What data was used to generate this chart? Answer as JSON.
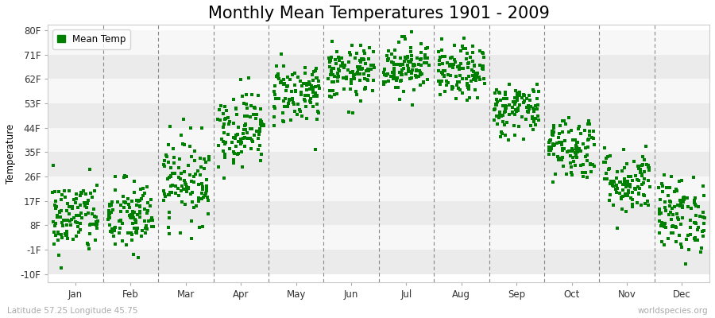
{
  "title": "Monthly Mean Temperatures 1901 - 2009",
  "ylabel": "Temperature",
  "xlabel_bottom_left": "Latitude 57.25 Longitude 45.75",
  "xlabel_bottom_right": "worldspecies.org",
  "ytick_labels": [
    "-10F",
    "-1F",
    "8F",
    "17F",
    "26F",
    "35F",
    "44F",
    "53F",
    "62F",
    "71F",
    "80F"
  ],
  "ytick_values": [
    -10,
    -1,
    8,
    17,
    26,
    35,
    44,
    53,
    62,
    71,
    80
  ],
  "months": [
    "Jan",
    "Feb",
    "Mar",
    "Apr",
    "May",
    "Jun",
    "Jul",
    "Aug",
    "Sep",
    "Oct",
    "Nov",
    "Dec"
  ],
  "month_centers": [
    1,
    2,
    3,
    4,
    5,
    6,
    7,
    8,
    9,
    10,
    11,
    12
  ],
  "dot_color": "#008000",
  "background_color": "#ffffff",
  "plot_bg_color": "#ffffff",
  "stripe_colors": [
    "#ebebeb",
    "#f7f7f7"
  ],
  "grid_color": "#999999",
  "legend_label": "Mean Temp",
  "n_years": 109,
  "seed": 42,
  "monthly_mean_F": [
    11,
    11,
    25,
    44,
    57,
    64,
    67,
    64,
    51,
    37,
    24,
    12
  ],
  "monthly_std_F": [
    7,
    7,
    8,
    7,
    6,
    5,
    5,
    5,
    5,
    6,
    6,
    7
  ],
  "ylim": [
    -13,
    82
  ],
  "xlim": [
    0.5,
    12.5
  ],
  "title_fontsize": 15,
  "axis_fontsize": 8.5,
  "legend_fontsize": 8.5,
  "dot_size": 5,
  "figsize": [
    9.0,
    4.0
  ],
  "dpi": 100
}
